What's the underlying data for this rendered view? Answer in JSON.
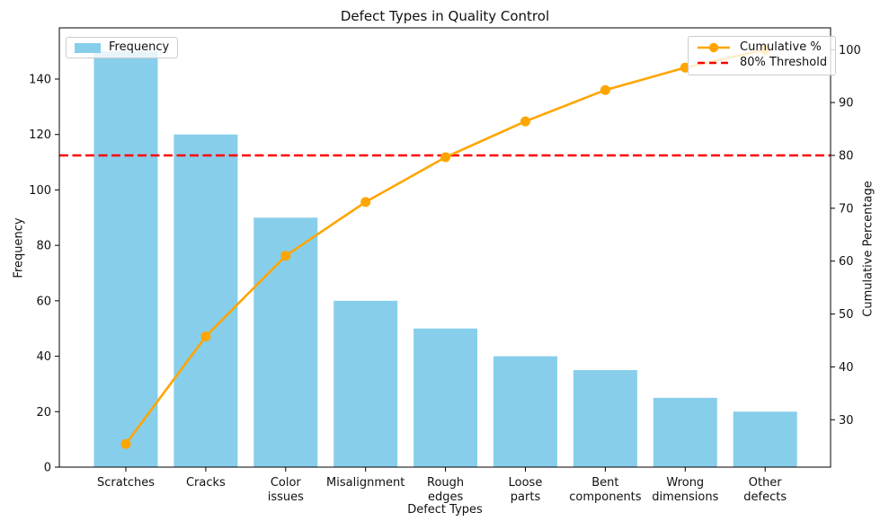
{
  "chart_data": {
    "type": "pareto (bar + line)",
    "title": "Defect Types in Quality Control",
    "xlabel": "Defect Types",
    "ylabel_left": "Frequency",
    "ylabel_right": "Cumulative Percentage",
    "categories": [
      "Scratches",
      "Cracks",
      "Color issues",
      "Misalignment",
      "Rough edges",
      "Loose parts",
      "Bent components",
      "Wrong dimensions",
      "Other defects"
    ],
    "category_label_lines": [
      [
        "Scratches"
      ],
      [
        "Cracks"
      ],
      [
        "Color",
        "issues"
      ],
      [
        "Misalignment"
      ],
      [
        "Rough",
        "edges"
      ],
      [
        "Loose",
        "parts"
      ],
      [
        "Bent",
        "components"
      ],
      [
        "Wrong",
        "dimensions"
      ],
      [
        "Other",
        "defects"
      ]
    ],
    "series": [
      {
        "name": "Frequency",
        "type": "bar",
        "color": "#87CEEB",
        "values": [
          150,
          120,
          90,
          60,
          50,
          40,
          35,
          25,
          20
        ]
      },
      {
        "name": "Cumulative %",
        "type": "line",
        "color": "#FFA500",
        "marker": "circle",
        "values": [
          25.42,
          45.76,
          61.02,
          71.19,
          79.66,
          86.44,
          92.37,
          96.61,
          100.0
        ]
      }
    ],
    "threshold": {
      "label": "80% Threshold",
      "value": 80,
      "color": "#FF0000",
      "style": "dashed"
    },
    "axes": {
      "left": {
        "ticks": [
          0,
          20,
          40,
          60,
          80,
          100,
          120,
          140
        ]
      },
      "right": {
        "ticks": [
          30,
          40,
          50,
          60,
          70,
          80,
          90,
          100
        ]
      },
      "grid": false
    },
    "legend_positions": {
      "frequency": "upper left",
      "cumulative": "upper right"
    }
  }
}
